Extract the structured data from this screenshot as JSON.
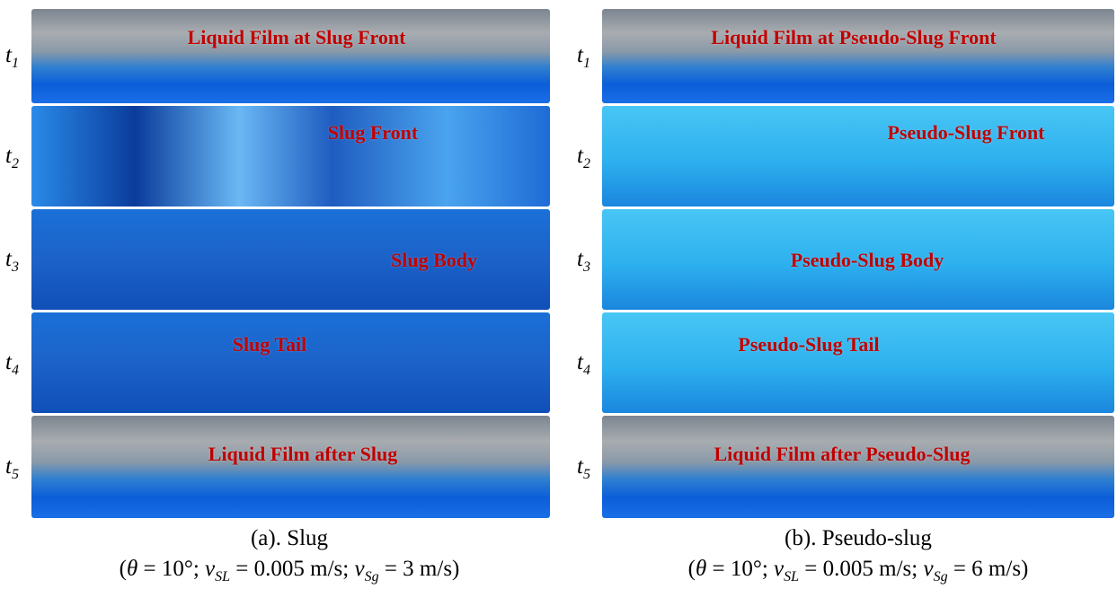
{
  "panels": [
    {
      "rows": [
        {
          "time": "t",
          "sub": "1",
          "label": "Liquid Film at Slug Front",
          "scene": "film"
        },
        {
          "time": "t",
          "sub": "2",
          "label": "Slug Front",
          "scene": "mixed"
        },
        {
          "time": "t",
          "sub": "3",
          "label": "Slug Body",
          "scene": "deep"
        },
        {
          "time": "t",
          "sub": "4",
          "label": "Slug Tail",
          "scene": "deep"
        },
        {
          "time": "t",
          "sub": "5",
          "label": "Liquid Film after Slug",
          "scene": "film"
        }
      ],
      "caption": "(a). Slug",
      "condition": [
        {
          "text": "(",
          "style": "plain"
        },
        {
          "text": "θ",
          "style": "italic"
        },
        {
          "text": " = 10°; ",
          "style": "plain"
        },
        {
          "text": "v",
          "style": "italic"
        },
        {
          "text": "SL",
          "style": "sub"
        },
        {
          "text": " = 0.005 m/s; ",
          "style": "plain"
        },
        {
          "text": "v",
          "style": "italic"
        },
        {
          "text": "Sg",
          "style": "sub"
        },
        {
          "text": " = 3 m/s)",
          "style": "plain"
        }
      ]
    },
    {
      "rows": [
        {
          "time": "t",
          "sub": "1",
          "label": "Liquid Film at Pseudo-Slug Front",
          "scene": "film"
        },
        {
          "time": "t",
          "sub": "2",
          "label": "Pseudo-Slug Front",
          "scene": "light"
        },
        {
          "time": "t",
          "sub": "3",
          "label": "Pseudo-Slug Body",
          "scene": "light"
        },
        {
          "time": "t",
          "sub": "4",
          "label": "Pseudo-Slug Tail",
          "scene": "light"
        },
        {
          "time": "t",
          "sub": "5",
          "label": "Liquid Film after Pseudo-Slug",
          "scene": "film"
        }
      ],
      "caption": "(b). Pseudo-slug",
      "condition": [
        {
          "text": "(",
          "style": "plain"
        },
        {
          "text": "θ",
          "style": "italic"
        },
        {
          "text": " = 10°; ",
          "style": "plain"
        },
        {
          "text": "v",
          "style": "italic"
        },
        {
          "text": "SL",
          "style": "sub"
        },
        {
          "text": " = 0.005 m/s; ",
          "style": "plain"
        },
        {
          "text": "v",
          "style": "italic"
        },
        {
          "text": "Sg",
          "style": "sub"
        },
        {
          "text": " = 6 m/s)",
          "style": "plain"
        }
      ]
    }
  ]
}
